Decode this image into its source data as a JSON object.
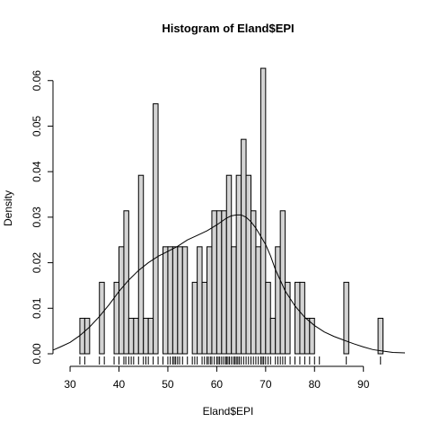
{
  "chart_data": {
    "type": "bar",
    "title": "Histogram of Eland$EPI",
    "xlabel": "Eland$EPI",
    "ylabel": "Density",
    "xlim": [
      26.5,
      98.5
    ],
    "ylim": [
      0,
      0.0635
    ],
    "x_ticks": [
      30,
      40,
      50,
      60,
      70,
      80,
      90
    ],
    "y_ticks": [
      0.0,
      0.01,
      0.02,
      0.03,
      0.04,
      0.05,
      0.06
    ],
    "bin_start": 32,
    "bin_width": 1,
    "densities": [
      0.0078,
      0.0078,
      0,
      0,
      0.0157,
      0,
      0,
      0.0157,
      0.0235,
      0.0314,
      0.0078,
      0.0078,
      0.0392,
      0.0078,
      0.0078,
      0.0549,
      0,
      0.0235,
      0.0235,
      0.0235,
      0.0235,
      0.0235,
      0,
      0.0157,
      0.0235,
      0.0157,
      0.0235,
      0.0314,
      0.0314,
      0.0314,
      0.0392,
      0.0235,
      0.0392,
      0.0471,
      0.0392,
      0.0314,
      0.0235,
      0.0627,
      0.0157,
      0.0078,
      0.0235,
      0.0314,
      0.0157,
      0,
      0.0157,
      0.0157,
      0.0078,
      0.0078,
      0,
      0,
      0,
      0,
      0,
      0,
      0.0157,
      0,
      0,
      0,
      0,
      0,
      0,
      0.0078
    ],
    "density_curve": {
      "x": [
        26.5,
        28,
        30,
        32,
        34,
        36,
        38,
        40,
        42,
        44,
        46,
        48,
        50,
        52,
        54,
        56,
        58,
        60,
        62,
        63,
        64,
        65,
        66,
        67,
        68,
        69,
        70,
        71,
        72,
        74,
        76,
        78,
        80,
        82,
        84,
        86,
        88,
        90,
        92,
        94,
        96,
        98.5
      ],
      "y": [
        0.0008,
        0.0015,
        0.0025,
        0.004,
        0.0059,
        0.0082,
        0.0108,
        0.0137,
        0.0162,
        0.0183,
        0.02,
        0.0214,
        0.0225,
        0.0236,
        0.025,
        0.026,
        0.027,
        0.0283,
        0.0298,
        0.0303,
        0.0305,
        0.0305,
        0.03,
        0.029,
        0.0276,
        0.0258,
        0.024,
        0.0215,
        0.0185,
        0.0138,
        0.0105,
        0.008,
        0.0062,
        0.0048,
        0.0038,
        0.003,
        0.0022,
        0.0015,
        0.0009,
        0.0006,
        0.0003,
        0.0002
      ]
    },
    "rug": [
      32,
      33,
      36,
      37,
      39,
      40,
      41,
      41.4,
      42,
      42.5,
      43,
      44,
      45,
      45.5,
      46,
      47,
      48,
      49,
      50,
      50.5,
      51,
      51.3,
      51.6,
      52,
      52.4,
      53,
      54,
      55,
      55.5,
      56,
      57,
      57.5,
      58,
      58.3,
      58.7,
      59,
      59.5,
      60,
      60.3,
      60.6,
      61,
      61.4,
      61.8,
      62,
      62.3,
      62.6,
      63,
      63.4,
      63.7,
      64,
      64.3,
      64.6,
      65,
      65.5,
      66,
      66.5,
      67,
      67.5,
      68,
      68.5,
      69,
      69.3,
      69.6,
      70,
      70.5,
      71,
      72,
      72.5,
      73,
      73.5,
      74,
      75,
      76,
      77,
      78,
      79,
      80,
      81,
      86.5,
      93.5
    ],
    "grid": false,
    "legend": "none"
  }
}
